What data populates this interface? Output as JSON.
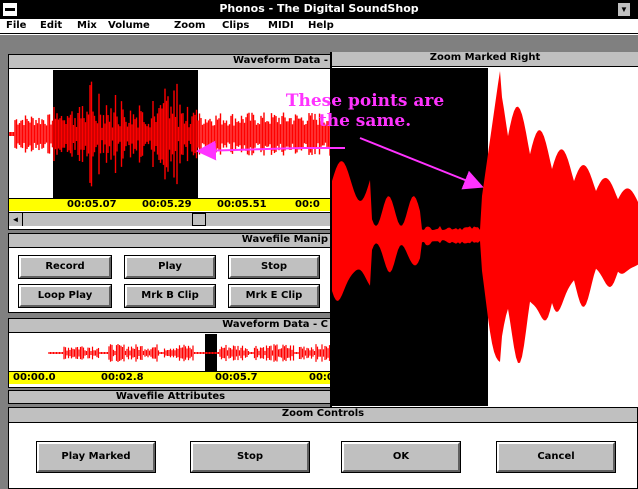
{
  "window": {
    "title": "Phonos - The Digital SoundShop",
    "sysmenu_icon": "system-menu-icon",
    "size_button_glyph": "▼"
  },
  "menu": [
    "File",
    "Edit",
    "Mix",
    "Volume",
    "Zoom",
    "Clips",
    "MIDI",
    "Help"
  ],
  "waveform_top": {
    "title": "Waveform Data -",
    "ticks": [
      "00:05.07",
      "00:05.29",
      "00:05.51",
      "00:0"
    ],
    "scroll_arrow": "◄"
  },
  "manip": {
    "title": "Wavefile Manip",
    "buttons": [
      "Record",
      "Play",
      "Stop",
      "Loop Play",
      "Mrk B Clip",
      "Mrk E Clip"
    ]
  },
  "waveform_bottom": {
    "title": "Waveform Data - C",
    "ticks": [
      "00:00.0",
      "00:02.8",
      "00:05.7",
      "00:0"
    ]
  },
  "attributes": {
    "title": "Wavefile Attributes"
  },
  "zoom_window": {
    "title": "Zoom Marked Right"
  },
  "zoom_controls": {
    "title": "Zoom Controls",
    "buttons": [
      "Play Marked",
      "Stop",
      "OK",
      "Cancel"
    ]
  },
  "annotation": {
    "line1": "These points are",
    "line2": "the same."
  },
  "colors": {
    "waveform": "#ff0000",
    "annotation": "#ff33ff",
    "ruler": "#ffff00",
    "marked_region": "#000000"
  }
}
